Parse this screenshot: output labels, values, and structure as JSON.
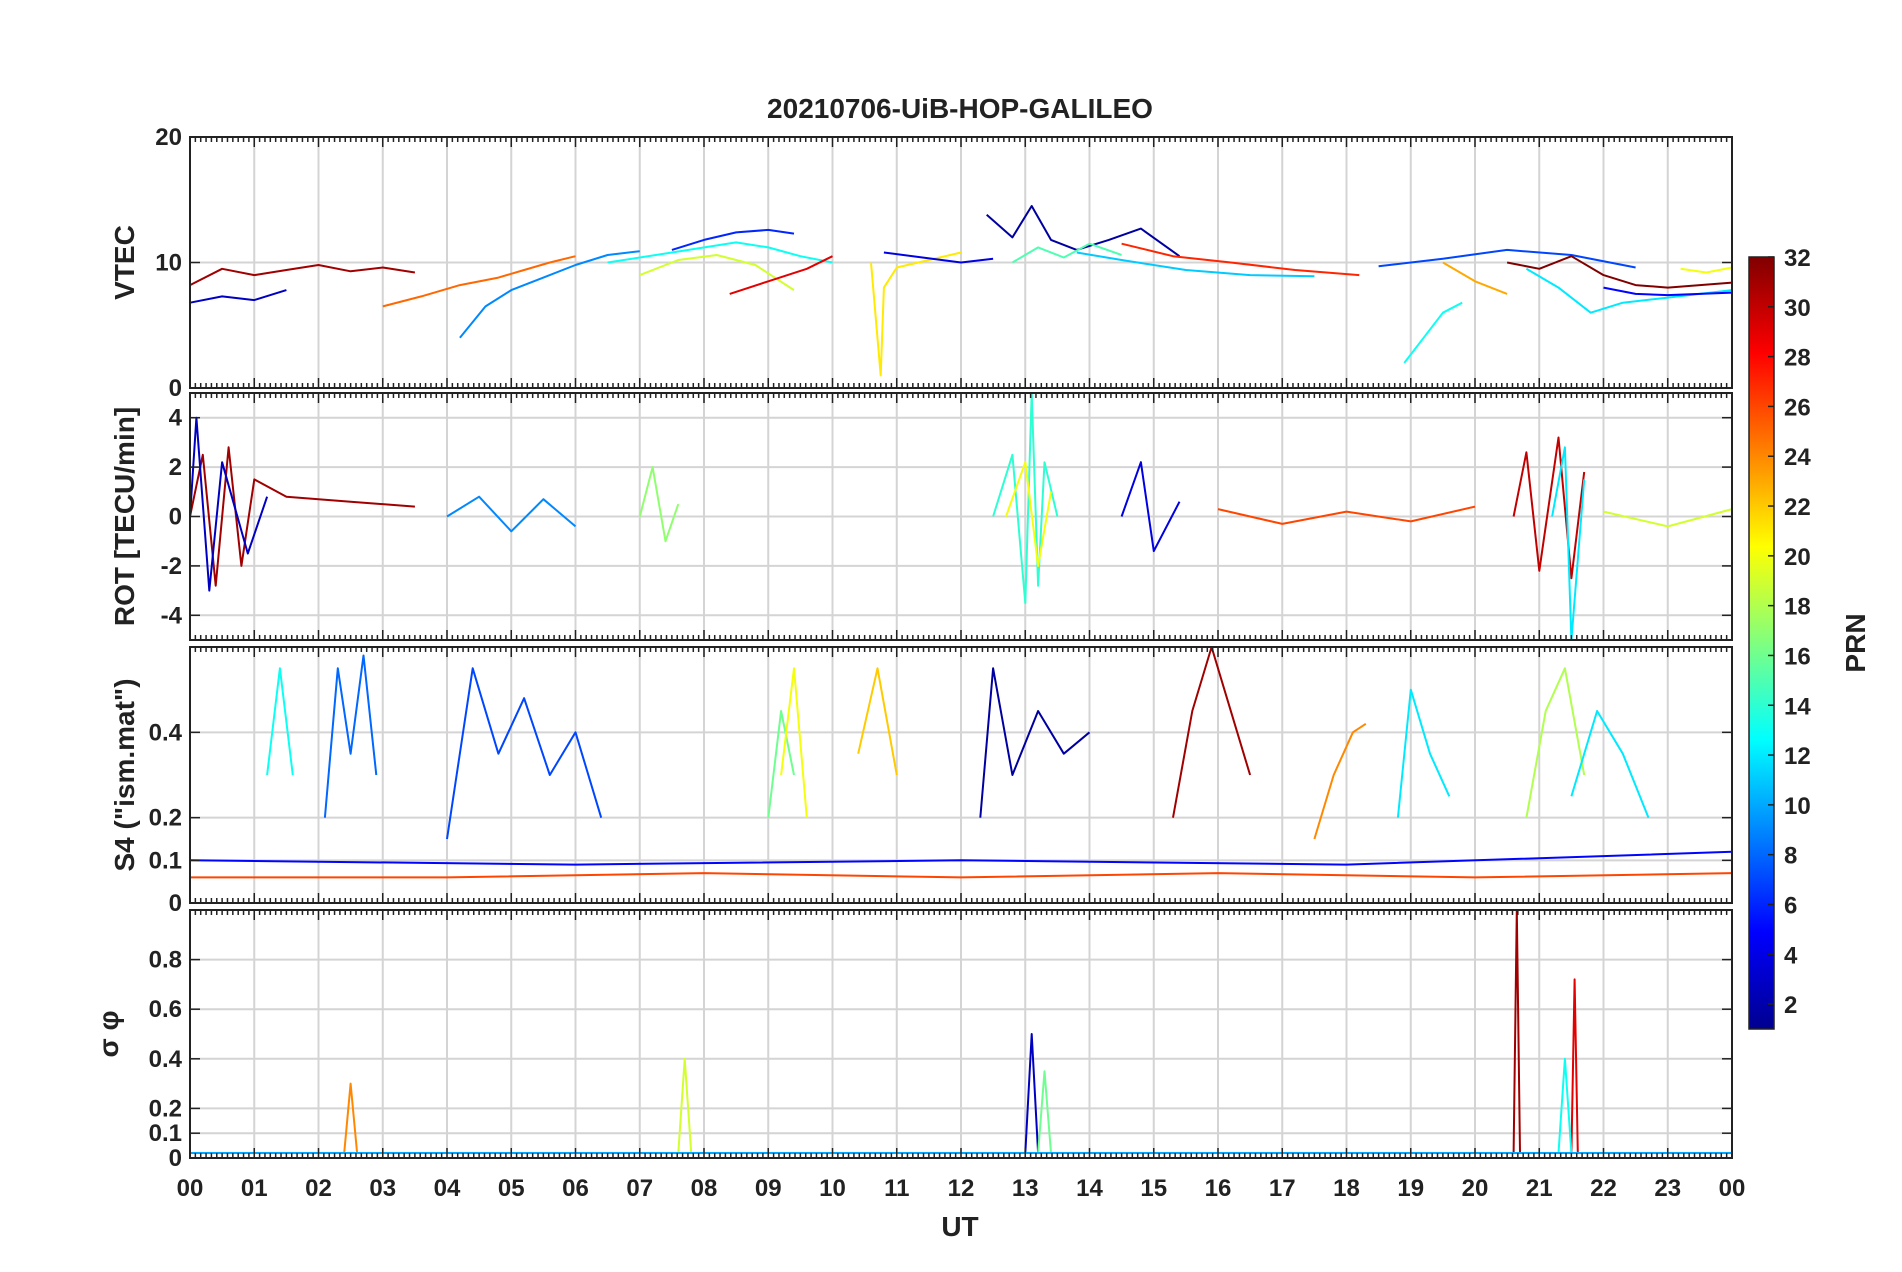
{
  "chart_data": {
    "type": "line",
    "title": "20210706-UiB-HOP-GALILEO",
    "xlabel": "UT",
    "x_ticks": [
      "00",
      "01",
      "02",
      "03",
      "04",
      "05",
      "06",
      "07",
      "08",
      "09",
      "10",
      "11",
      "12",
      "13",
      "14",
      "15",
      "16",
      "17",
      "18",
      "19",
      "20",
      "21",
      "22",
      "23",
      "00"
    ],
    "xlim": [
      0,
      24
    ],
    "grid": true,
    "colorbar": {
      "label": "PRN",
      "range": [
        1,
        32
      ],
      "ticks": [
        "32",
        "30",
        "28",
        "26",
        "24",
        "22",
        "20",
        "18",
        "16",
        "14",
        "12",
        "10",
        "8",
        "6",
        "4",
        "2"
      ],
      "colormap": "jet"
    },
    "panels": [
      {
        "ylabel": "VTEC",
        "ylim": [
          0,
          20
        ],
        "y_ticks": [
          "20",
          "10",
          "0"
        ],
        "series": [
          {
            "prn": 31,
            "x": [
              0,
              0.5,
              1,
              1.5,
              2,
              2.5,
              3,
              3.5
            ],
            "y": [
              8.2,
              9.5,
              9.0,
              9.4,
              9.8,
              9.3,
              9.6,
              9.2
            ]
          },
          {
            "prn": 3,
            "x": [
              0,
              0.5,
              1,
              1.5
            ],
            "y": [
              6.8,
              7.3,
              7.0,
              7.8
            ]
          },
          {
            "prn": 9,
            "x": [
              4.2,
              4.6,
              5.0,
              5.5,
              6.0,
              6.5,
              7.0
            ],
            "y": [
              4.0,
              6.5,
              7.8,
              8.8,
              9.8,
              10.6,
              10.9
            ]
          },
          {
            "prn": 25,
            "x": [
              3.0,
              3.6,
              4.2,
              4.8,
              5.2,
              5.6,
              6.0
            ],
            "y": [
              6.5,
              7.3,
              8.2,
              8.8,
              9.4,
              10.0,
              10.5
            ]
          },
          {
            "prn": 6,
            "x": [
              7.5,
              8.0,
              8.5,
              9.0,
              9.4
            ],
            "y": [
              11.0,
              11.8,
              12.4,
              12.6,
              12.3
            ]
          },
          {
            "prn": 13,
            "x": [
              6.5,
              7.5,
              8.5,
              9.0,
              9.5,
              10.0
            ],
            "y": [
              10.0,
              10.8,
              11.6,
              11.2,
              10.5,
              10.0
            ]
          },
          {
            "prn": 19,
            "x": [
              7.0,
              7.6,
              8.2,
              8.8,
              9.4
            ],
            "y": [
              9.0,
              10.2,
              10.6,
              9.8,
              7.8
            ]
          },
          {
            "prn": 29,
            "x": [
              8.4,
              9.0,
              9.6,
              10.0
            ],
            "y": [
              7.5,
              8.5,
              9.5,
              10.5
            ]
          },
          {
            "prn": 21,
            "x": [
              10.6,
              10.75,
              10.8,
              11.0,
              11.5,
              12.0
            ],
            "y": [
              10.0,
              1.0,
              8.0,
              9.6,
              10.2,
              10.8
            ]
          },
          {
            "prn": 4,
            "x": [
              10.8,
              11.4,
              12.0,
              12.5
            ],
            "y": [
              10.8,
              10.4,
              10.0,
              10.3
            ]
          },
          {
            "prn": 2,
            "x": [
              12.4,
              12.8,
              13.1,
              13.4,
              13.8,
              14.3,
              14.8,
              15.4
            ],
            "y": [
              13.8,
              12.0,
              14.5,
              11.8,
              11.0,
              11.8,
              12.7,
              10.5
            ]
          },
          {
            "prn": 15,
            "x": [
              12.8,
              13.2,
              13.6,
              14.0,
              14.5
            ],
            "y": [
              10.0,
              11.2,
              10.4,
              11.5,
              10.6
            ]
          },
          {
            "prn": 11,
            "x": [
              13.8,
              14.5,
              15.5,
              16.5,
              17.5
            ],
            "y": [
              10.8,
              10.2,
              9.4,
              9.0,
              8.9
            ]
          },
          {
            "prn": 27,
            "x": [
              14.5,
              15.3,
              16.2,
              17.2,
              18.2
            ],
            "y": [
              11.5,
              10.5,
              10.0,
              9.4,
              9.0
            ]
          },
          {
            "prn": 13,
            "x": [
              18.9,
              19.2,
              19.5,
              19.8
            ],
            "y": [
              2.0,
              4.0,
              6.0,
              6.8
            ]
          },
          {
            "prn": 7,
            "x": [
              18.5,
              19.5,
              20.5,
              21.5,
              22.5
            ],
            "y": [
              9.7,
              10.3,
              11.0,
              10.6,
              9.6
            ]
          },
          {
            "prn": 23,
            "x": [
              19.5,
              20.0,
              20.5
            ],
            "y": [
              10.0,
              8.5,
              7.5
            ]
          },
          {
            "prn": 32,
            "x": [
              20.5,
              21.0,
              21.5,
              22.0,
              22.5,
              23.0,
              24.0
            ],
            "y": [
              10.0,
              9.5,
              10.5,
              9.0,
              8.2,
              8.0,
              8.4
            ]
          },
          {
            "prn": 12,
            "x": [
              20.8,
              21.3,
              21.8,
              22.3,
              23.0,
              24.0
            ],
            "y": [
              9.5,
              8.0,
              6.0,
              6.8,
              7.2,
              7.8
            ]
          },
          {
            "prn": 5,
            "x": [
              22.0,
              22.5,
              23.0,
              23.5,
              24.0
            ],
            "y": [
              8.0,
              7.5,
              7.4,
              7.5,
              7.6
            ]
          },
          {
            "prn": 20,
            "x": [
              23.2,
              23.6,
              24.0
            ],
            "y": [
              9.5,
              9.2,
              9.6
            ]
          }
        ]
      },
      {
        "ylabel": "ROT [TECU/min]",
        "ylim": [
          -5,
          5
        ],
        "y_ticks": [
          "4",
          "2",
          "0",
          "-2",
          "-4"
        ],
        "series": [
          {
            "prn": 31,
            "x": [
              0,
              0.2,
              0.4,
              0.6,
              0.8,
              1.0,
              1.5,
              2.5,
              3.5
            ],
            "y": [
              0,
              2.5,
              -2.8,
              2.8,
              -2.0,
              1.5,
              0.8,
              0.6,
              0.4
            ]
          },
          {
            "prn": 3,
            "x": [
              0,
              0.1,
              0.3,
              0.5,
              0.9,
              1.2
            ],
            "y": [
              0,
              4.0,
              -3.0,
              2.2,
              -1.5,
              0.8
            ]
          },
          {
            "prn": 9,
            "x": [
              4.0,
              4.5,
              5.0,
              5.5,
              6.0
            ],
            "y": [
              0,
              0.8,
              -0.6,
              0.7,
              -0.4
            ]
          },
          {
            "prn": 17,
            "x": [
              7.0,
              7.2,
              7.4,
              7.6
            ],
            "y": [
              0,
              2.0,
              -1.0,
              0.5
            ]
          },
          {
            "prn": 14,
            "x": [
              12.5,
              12.8,
              13.0,
              13.1,
              13.2,
              13.3,
              13.5
            ],
            "y": [
              0,
              2.5,
              -3.5,
              5.0,
              -2.8,
              2.2,
              0
            ]
          },
          {
            "prn": 20,
            "x": [
              12.7,
              13.0,
              13.2,
              13.4
            ],
            "y": [
              0,
              2.2,
              -2.0,
              1.0
            ]
          },
          {
            "prn": 4,
            "x": [
              14.5,
              14.8,
              15.0,
              15.4
            ],
            "y": [
              0,
              2.2,
              -1.4,
              0.6
            ]
          },
          {
            "prn": 30,
            "x": [
              20.6,
              20.8,
              21.0,
              21.3,
              21.5,
              21.7
            ],
            "y": [
              0,
              2.6,
              -2.2,
              3.2,
              -2.5,
              1.8
            ]
          },
          {
            "prn": 12,
            "x": [
              21.2,
              21.4,
              21.5,
              21.7
            ],
            "y": [
              0,
              2.8,
              -5.0,
              1.5
            ]
          },
          {
            "prn": 26,
            "x": [
              16.0,
              17.0,
              18.0,
              19.0,
              20.0
            ],
            "y": [
              0.3,
              -0.3,
              0.2,
              -0.2,
              0.4
            ]
          },
          {
            "prn": 19,
            "x": [
              22.0,
              23.0,
              24.0
            ],
            "y": [
              0.2,
              -0.4,
              0.3
            ]
          }
        ]
      },
      {
        "ylabel": "S4 (\"ism.mat\")",
        "ylim": [
          0,
          0.6
        ],
        "y_ticks": [
          "0.4",
          "0.2",
          "0.1",
          "0"
        ],
        "series": [
          {
            "prn": 8,
            "x": [
              2.1,
              2.3,
              2.5,
              2.7,
              2.9
            ],
            "y": [
              0.2,
              0.55,
              0.35,
              0.58,
              0.3
            ]
          },
          {
            "prn": 13,
            "x": [
              1.2,
              1.4,
              1.6
            ],
            "y": [
              0.3,
              0.55,
              0.3
            ]
          },
          {
            "prn": 7,
            "x": [
              4.0,
              4.4,
              4.8,
              5.2,
              5.6,
              6.0,
              6.4
            ],
            "y": [
              0.15,
              0.55,
              0.35,
              0.48,
              0.3,
              0.4,
              0.2
            ]
          },
          {
            "prn": 16,
            "x": [
              9.0,
              9.2,
              9.4
            ],
            "y": [
              0.2,
              0.45,
              0.3
            ]
          },
          {
            "prn": 20,
            "x": [
              9.2,
              9.4,
              9.6
            ],
            "y": [
              0.3,
              0.55,
              0.2
            ]
          },
          {
            "prn": 22,
            "x": [
              10.4,
              10.7,
              11.0
            ],
            "y": [
              0.35,
              0.55,
              0.3
            ]
          },
          {
            "prn": 2,
            "x": [
              12.3,
              12.5,
              12.8,
              13.2,
              13.6,
              14.0
            ],
            "y": [
              0.2,
              0.55,
              0.3,
              0.45,
              0.35,
              0.4
            ]
          },
          {
            "prn": 31,
            "x": [
              15.3,
              15.6,
              15.9,
              16.1,
              16.5
            ],
            "y": [
              0.2,
              0.45,
              0.6,
              0.5,
              0.3
            ]
          },
          {
            "prn": 24,
            "x": [
              17.5,
              17.8,
              18.1,
              18.3
            ],
            "y": [
              0.15,
              0.3,
              0.4,
              0.42
            ]
          },
          {
            "prn": 12,
            "x": [
              18.8,
              19.0,
              19.3,
              19.6
            ],
            "y": [
              0.2,
              0.5,
              0.35,
              0.25
            ]
          },
          {
            "prn": 18,
            "x": [
              20.8,
              21.1,
              21.4,
              21.7
            ],
            "y": [
              0.2,
              0.45,
              0.55,
              0.3
            ]
          },
          {
            "prn": 12,
            "x": [
              21.5,
              21.9,
              22.3,
              22.7
            ],
            "y": [
              0.25,
              0.45,
              0.35,
              0.2
            ]
          },
          {
            "prn": 26,
            "x": [
              0,
              4,
              8,
              12,
              16,
              20,
              24
            ],
            "y": [
              0.06,
              0.06,
              0.07,
              0.06,
              0.07,
              0.06,
              0.07
            ]
          },
          {
            "prn": 5,
            "x": [
              0,
              6,
              12,
              18,
              24
            ],
            "y": [
              0.1,
              0.09,
              0.1,
              0.09,
              0.12
            ]
          }
        ]
      },
      {
        "ylabel": "σ φ",
        "ylim": [
          0,
          1
        ],
        "y_ticks": [
          "0.8",
          "0.6",
          "0.4",
          "0.2",
          "0.1",
          "0"
        ],
        "series": [
          {
            "prn": 24,
            "x": [
              2.4,
              2.5,
              2.6
            ],
            "y": [
              0.02,
              0.3,
              0.02
            ]
          },
          {
            "prn": 19,
            "x": [
              7.6,
              7.7,
              7.8
            ],
            "y": [
              0.02,
              0.4,
              0.02
            ]
          },
          {
            "prn": 3,
            "x": [
              13.0,
              13.1,
              13.2
            ],
            "y": [
              0.02,
              0.5,
              0.02
            ]
          },
          {
            "prn": 16,
            "x": [
              13.2,
              13.3,
              13.4
            ],
            "y": [
              0.02,
              0.35,
              0.02
            ]
          },
          {
            "prn": 31,
            "x": [
              20.6,
              20.65,
              20.7
            ],
            "y": [
              0.02,
              1.0,
              0.02
            ]
          },
          {
            "prn": 29,
            "x": [
              21.5,
              21.55,
              21.6
            ],
            "y": [
              0.02,
              0.72,
              0.02
            ]
          },
          {
            "prn": 13,
            "x": [
              21.3,
              21.4,
              21.5
            ],
            "y": [
              0.02,
              0.4,
              0.02
            ]
          },
          {
            "prn": 10,
            "x": [
              0,
              6,
              12,
              18,
              24
            ],
            "y": [
              0.02,
              0.02,
              0.02,
              0.02,
              0.02
            ]
          }
        ]
      }
    ]
  }
}
